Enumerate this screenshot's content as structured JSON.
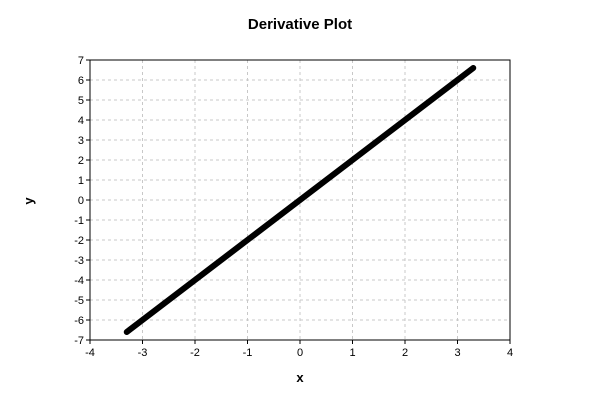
{
  "chart_data": {
    "type": "line",
    "title": "Derivative Plot",
    "xlabel": "x",
    "ylabel": "y",
    "xlim": [
      -4,
      4
    ],
    "ylim": [
      -7,
      7
    ],
    "x_ticks": [
      -4,
      -3,
      -2,
      -1,
      0,
      1,
      2,
      3,
      4
    ],
    "y_ticks": [
      -7,
      -6,
      -5,
      -4,
      -3,
      -2,
      -1,
      0,
      1,
      2,
      3,
      4,
      5,
      6,
      7
    ],
    "grid": true,
    "grid_style": "dashed",
    "series": [
      {
        "color": "#000000",
        "x": [
          -3.3,
          3.3
        ],
        "y": [
          -6.6,
          6.6
        ]
      }
    ]
  }
}
